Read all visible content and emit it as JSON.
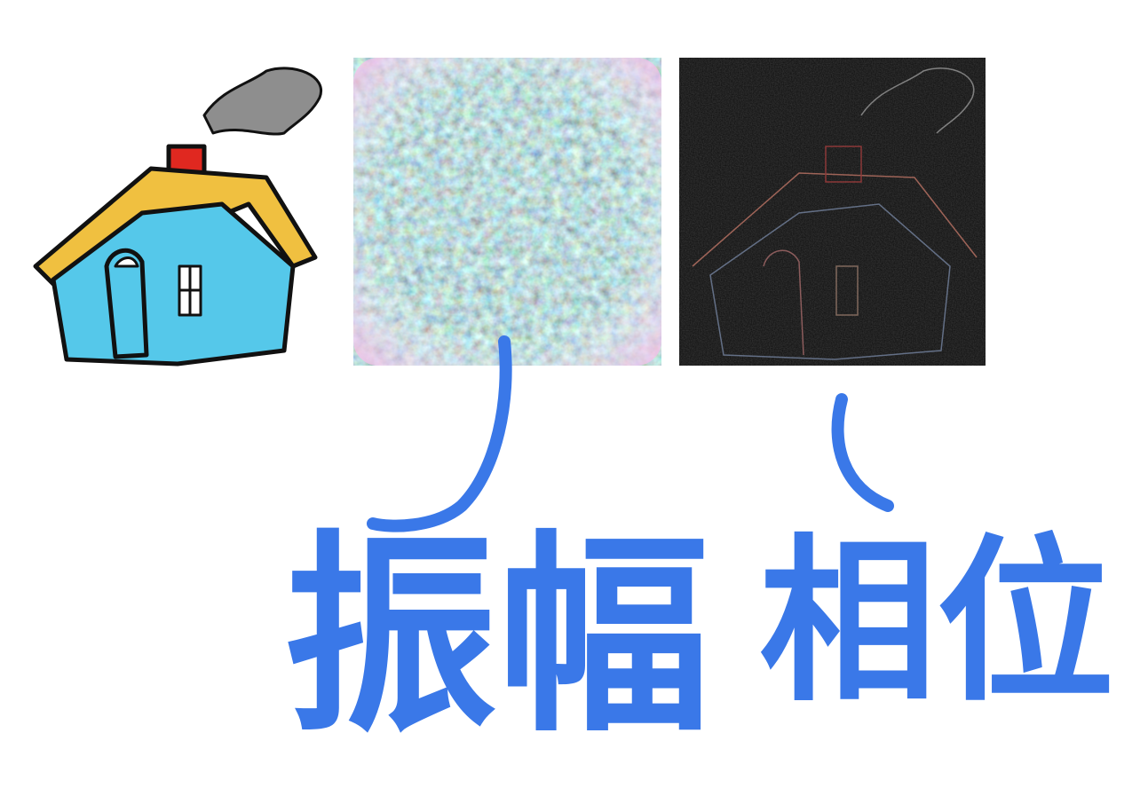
{
  "annotations": {
    "amplitude": "振幅",
    "phase": "相位"
  }
}
